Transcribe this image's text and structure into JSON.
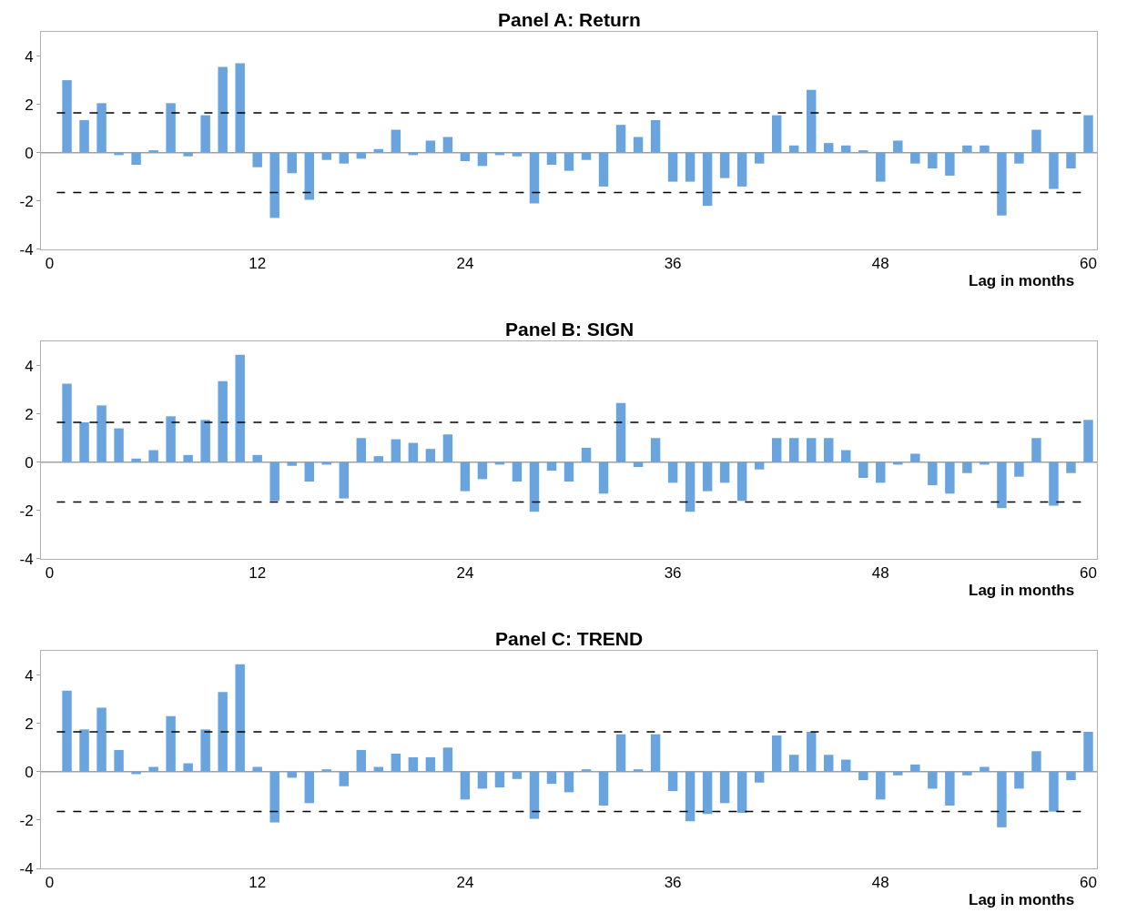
{
  "chart_data": [
    {
      "type": "bar",
      "title": "Panel A: Return",
      "xlabel": "Lag in months",
      "x": [
        1,
        2,
        3,
        4,
        5,
        6,
        7,
        8,
        9,
        10,
        11,
        12,
        13,
        14,
        15,
        16,
        17,
        18,
        19,
        20,
        21,
        22,
        23,
        24,
        25,
        26,
        27,
        28,
        29,
        30,
        31,
        32,
        33,
        34,
        35,
        36,
        37,
        38,
        39,
        40,
        41,
        42,
        43,
        44,
        45,
        46,
        47,
        48,
        49,
        50,
        51,
        52,
        53,
        54,
        55,
        56,
        57,
        58,
        59,
        60
      ],
      "color": "#6aa4de",
      "values": [
        3.0,
        1.35,
        2.05,
        -0.1,
        -0.5,
        0.1,
        2.05,
        -0.15,
        1.55,
        3.55,
        3.7,
        -0.6,
        -2.7,
        -0.85,
        -1.95,
        -0.3,
        -0.45,
        -0.25,
        0.15,
        0.95,
        -0.1,
        0.5,
        0.65,
        -0.35,
        -0.55,
        -0.1,
        -0.15,
        -2.1,
        -0.5,
        -0.75,
        -0.3,
        -1.4,
        1.15,
        0.65,
        1.35,
        -1.2,
        -1.2,
        -2.2,
        -1.05,
        -1.4,
        -0.45,
        1.55,
        0.3,
        2.6,
        0.4,
        0.3,
        0.1,
        -1.2,
        0.5,
        -0.45,
        -0.65,
        -0.95,
        0.3,
        0.3,
        -2.6,
        -0.45,
        0.95,
        -1.5,
        -0.65,
        1.55
      ],
      "xlim": [
        -0.5,
        60.5
      ],
      "xticks": [
        0,
        12,
        24,
        36,
        48,
        60
      ],
      "ylim": [
        -4,
        5
      ],
      "yticks": [
        -4,
        -2,
        0,
        2,
        4
      ],
      "ref_lines": [
        {
          "axis": "y",
          "value": 1.65,
          "color": "#000000",
          "line_style": "dashed"
        },
        {
          "axis": "y",
          "value": -1.65,
          "color": "#000000",
          "line_style": "dashed"
        },
        {
          "axis": "y",
          "value": 0,
          "color": "#a0a0a0",
          "line_style": "solid"
        }
      ]
    },
    {
      "type": "bar",
      "title": "Panel B: SIGN",
      "xlabel": "Lag in months",
      "x": [
        1,
        2,
        3,
        4,
        5,
        6,
        7,
        8,
        9,
        10,
        11,
        12,
        13,
        14,
        15,
        16,
        17,
        18,
        19,
        20,
        21,
        22,
        23,
        24,
        25,
        26,
        27,
        28,
        29,
        30,
        31,
        32,
        33,
        34,
        35,
        36,
        37,
        38,
        39,
        40,
        41,
        42,
        43,
        44,
        45,
        46,
        47,
        48,
        49,
        50,
        51,
        52,
        53,
        54,
        55,
        56,
        57,
        58,
        59,
        60
      ],
      "color": "#6aa4de",
      "values": [
        3.25,
        1.65,
        2.35,
        1.4,
        0.15,
        0.5,
        1.9,
        0.3,
        1.75,
        3.35,
        4.45,
        0.3,
        -1.6,
        -0.15,
        -0.8,
        -0.1,
        -1.5,
        1.0,
        0.25,
        0.95,
        0.8,
        0.55,
        1.15,
        -1.2,
        -0.7,
        -0.1,
        -0.8,
        -2.05,
        -0.35,
        -0.8,
        0.6,
        -1.3,
        2.45,
        -0.2,
        1.0,
        -0.85,
        -2.05,
        -1.2,
        -0.85,
        -1.6,
        -0.3,
        1.0,
        1.0,
        1.0,
        1.0,
        0.5,
        -0.65,
        -0.85,
        -0.1,
        0.35,
        -0.95,
        -1.3,
        -0.45,
        -0.1,
        -1.9,
        -0.6,
        1.0,
        -1.8,
        -0.45,
        1.75
      ],
      "xlim": [
        -0.5,
        60.5
      ],
      "xticks": [
        0,
        12,
        24,
        36,
        48,
        60
      ],
      "ylim": [
        -4,
        5
      ],
      "yticks": [
        -4,
        -2,
        0,
        2,
        4
      ],
      "ref_lines": [
        {
          "axis": "y",
          "value": 1.65,
          "color": "#000000",
          "line_style": "dashed"
        },
        {
          "axis": "y",
          "value": -1.65,
          "color": "#000000",
          "line_style": "dashed"
        },
        {
          "axis": "y",
          "value": 0,
          "color": "#a0a0a0",
          "line_style": "solid"
        }
      ]
    },
    {
      "type": "bar",
      "title": "Panel C: TREND",
      "xlabel": "Lag in months",
      "x": [
        1,
        2,
        3,
        4,
        5,
        6,
        7,
        8,
        9,
        10,
        11,
        12,
        13,
        14,
        15,
        16,
        17,
        18,
        19,
        20,
        21,
        22,
        23,
        24,
        25,
        26,
        27,
        28,
        29,
        30,
        31,
        32,
        33,
        34,
        35,
        36,
        37,
        38,
        39,
        40,
        41,
        42,
        43,
        44,
        45,
        46,
        47,
        48,
        49,
        50,
        51,
        52,
        53,
        54,
        55,
        56,
        57,
        58,
        59,
        60
      ],
      "color": "#6aa4de",
      "values": [
        3.35,
        1.75,
        2.65,
        0.9,
        -0.1,
        0.2,
        2.3,
        0.35,
        1.75,
        3.3,
        4.45,
        0.2,
        -2.1,
        -0.25,
        -1.3,
        0.1,
        -0.6,
        0.9,
        0.2,
        0.75,
        0.6,
        0.6,
        1.0,
        -1.15,
        -0.7,
        -0.65,
        -0.3,
        -1.95,
        -0.5,
        -0.85,
        0.1,
        -1.4,
        1.55,
        0.1,
        1.55,
        -0.8,
        -2.05,
        -1.75,
        -1.3,
        -1.7,
        -0.45,
        1.5,
        0.7,
        1.65,
        0.7,
        0.5,
        -0.35,
        -1.15,
        -0.15,
        0.3,
        -0.7,
        -1.4,
        -0.15,
        0.2,
        -2.3,
        -0.7,
        0.85,
        -1.65,
        -0.35,
        1.65
      ],
      "xlim": [
        -0.5,
        60.5
      ],
      "xticks": [
        0,
        12,
        24,
        36,
        48,
        60
      ],
      "ylim": [
        -4,
        5
      ],
      "yticks": [
        -4,
        -2,
        0,
        2,
        4
      ],
      "ref_lines": [
        {
          "axis": "y",
          "value": 1.65,
          "color": "#000000",
          "line_style": "dashed"
        },
        {
          "axis": "y",
          "value": -1.65,
          "color": "#000000",
          "line_style": "dashed"
        },
        {
          "axis": "y",
          "value": 0,
          "color": "#a0a0a0",
          "line_style": "solid"
        }
      ]
    }
  ]
}
